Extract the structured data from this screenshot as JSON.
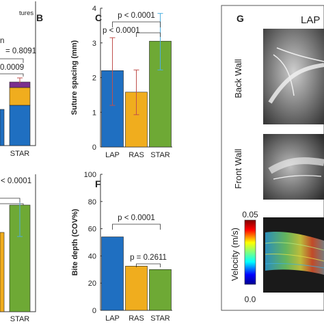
{
  "legend_fragment": "tures",
  "panels": {
    "b": {
      "letter": "B",
      "p_values": [
        "= 0.8091",
        "0.0009"
      ],
      "fragment": "n",
      "tick_labels": [
        "STAR"
      ]
    },
    "c": {
      "letter": "C"
    },
    "e": {
      "p_values": [
        "< 0.0001"
      ],
      "tick_labels": [
        "STAR"
      ]
    },
    "f": {
      "letter": "F"
    },
    "g": {
      "letter": "G",
      "title": "LAP",
      "row_labels": [
        "Back Wall",
        "Front Wall"
      ],
      "colorbar_label": "Velocity (m/s)",
      "colorbar_max": "0.05",
      "colorbar_min": "0.0"
    }
  },
  "colors": {
    "LAP": "#1f6fc1",
    "RAS": "#f0ad1e",
    "STAR": "#6ea935",
    "error": "#c0504d",
    "error_star": "#4fb0e0",
    "stack_purple": "#7b2f8e"
  },
  "chart_data": [
    {
      "id": "C",
      "type": "bar",
      "title": "",
      "ylabel": "Suture spacing (mm)",
      "xlabel": "",
      "categories": [
        "LAP",
        "RAS",
        "STAR"
      ],
      "values": [
        2.2,
        1.58,
        3.05
      ],
      "error_low": [
        1.2,
        0.93,
        2.22
      ],
      "error_high": [
        3.15,
        2.22,
        3.85
      ],
      "ylim": [
        0,
        4
      ],
      "yticks": [
        "0",
        "1",
        "2",
        "3",
        "4"
      ],
      "p_values": [
        {
          "from": 0,
          "to": 2,
          "text": "p < 0.0001"
        },
        {
          "from": 1,
          "to": 2,
          "text": "p < 0.0001"
        }
      ]
    },
    {
      "id": "F",
      "type": "bar",
      "title": "",
      "ylabel": "Bite depth (COV%)",
      "xlabel": "",
      "categories": [
        "LAP",
        "RAS",
        "STAR"
      ],
      "values": [
        54,
        32.5,
        30
      ],
      "ylim": [
        0,
        100
      ],
      "yticks": [
        "0",
        "20",
        "40",
        "60",
        "80",
        "100"
      ],
      "p_values": [
        {
          "from": 0,
          "to": 2,
          "text": "p < 0.0001"
        },
        {
          "from": 1,
          "to": 2,
          "text": "p = 0.2611"
        }
      ]
    }
  ]
}
